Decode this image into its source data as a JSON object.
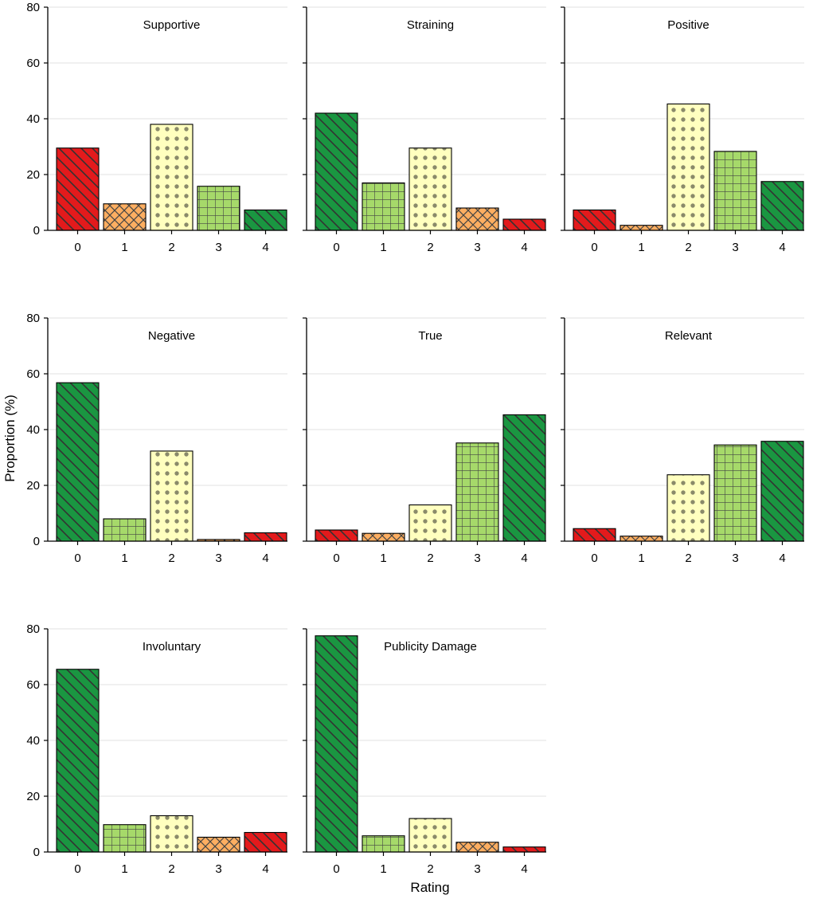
{
  "figure": {
    "ylabel": "Proportion (%)",
    "xlabel": "Rating"
  },
  "colors": {
    "red": "#e31a1c",
    "orange": "#fdae61",
    "yellow": "#ffffbf",
    "lightgreen": "#a6d96a",
    "green": "#1a9641",
    "dot": "#8a8a6a",
    "outline": "#000000",
    "grid": "#e0e0e0"
  },
  "chart_data": [
    {
      "type": "bar",
      "title": "Supportive",
      "categories": [
        "0",
        "1",
        "2",
        "3",
        "4"
      ],
      "values": [
        29.5,
        9.5,
        38,
        15.8,
        7.3
      ],
      "fills": [
        "red",
        "orange",
        "yellow",
        "lightgreen",
        "green"
      ],
      "ylim": [
        0,
        80
      ],
      "yticks": [
        "0",
        "20",
        "40",
        "60",
        "80"
      ],
      "grid": true
    },
    {
      "type": "bar",
      "title": "Straining",
      "categories": [
        "0",
        "1",
        "2",
        "3",
        "4"
      ],
      "values": [
        42,
        17,
        29.5,
        8,
        4
      ],
      "fills": [
        "green",
        "lightgreen",
        "yellow",
        "orange",
        "red"
      ],
      "ylim": [
        0,
        80
      ],
      "yticks": [],
      "grid": true
    },
    {
      "type": "bar",
      "title": "Positive",
      "categories": [
        "0",
        "1",
        "2",
        "3",
        "4"
      ],
      "values": [
        7.3,
        1.8,
        45.3,
        28.3,
        17.5
      ],
      "fills": [
        "red",
        "orange",
        "yellow",
        "lightgreen",
        "green"
      ],
      "ylim": [
        0,
        80
      ],
      "yticks": [],
      "grid": true
    },
    {
      "type": "bar",
      "title": "Negative",
      "categories": [
        "0",
        "1",
        "2",
        "3",
        "4"
      ],
      "values": [
        56.8,
        8,
        32.3,
        0.6,
        3
      ],
      "fills": [
        "green",
        "lightgreen",
        "yellow",
        "orange",
        "red"
      ],
      "ylim": [
        0,
        80
      ],
      "yticks": [
        "0",
        "20",
        "40",
        "60",
        "80"
      ],
      "grid": true
    },
    {
      "type": "bar",
      "title": "True",
      "categories": [
        "0",
        "1",
        "2",
        "3",
        "4"
      ],
      "values": [
        4,
        2.8,
        13,
        35.2,
        45.3
      ],
      "fills": [
        "red",
        "orange",
        "yellow",
        "lightgreen",
        "green"
      ],
      "ylim": [
        0,
        80
      ],
      "yticks": [],
      "grid": true
    },
    {
      "type": "bar",
      "title": "Relevant",
      "categories": [
        "0",
        "1",
        "2",
        "3",
        "4"
      ],
      "values": [
        4.5,
        1.8,
        23.8,
        34.5,
        35.8
      ],
      "fills": [
        "red",
        "orange",
        "yellow",
        "lightgreen",
        "green"
      ],
      "ylim": [
        0,
        80
      ],
      "yticks": [],
      "grid": true
    },
    {
      "type": "bar",
      "title": "Involuntary",
      "categories": [
        "0",
        "1",
        "2",
        "3",
        "4"
      ],
      "values": [
        65.5,
        9.8,
        13,
        5.3,
        7
      ],
      "fills": [
        "green",
        "lightgreen",
        "yellow",
        "orange",
        "red"
      ],
      "ylim": [
        0,
        80
      ],
      "yticks": [
        "0",
        "20",
        "40",
        "60",
        "80"
      ],
      "grid": true
    },
    {
      "type": "bar",
      "title": "Publicity Damage",
      "categories": [
        "0",
        "1",
        "2",
        "3",
        "4"
      ],
      "values": [
        77.5,
        5.8,
        12,
        3.5,
        1.8
      ],
      "fills": [
        "green",
        "lightgreen",
        "yellow",
        "orange",
        "red"
      ],
      "ylim": [
        0,
        80
      ],
      "yticks": [],
      "grid": true
    }
  ]
}
